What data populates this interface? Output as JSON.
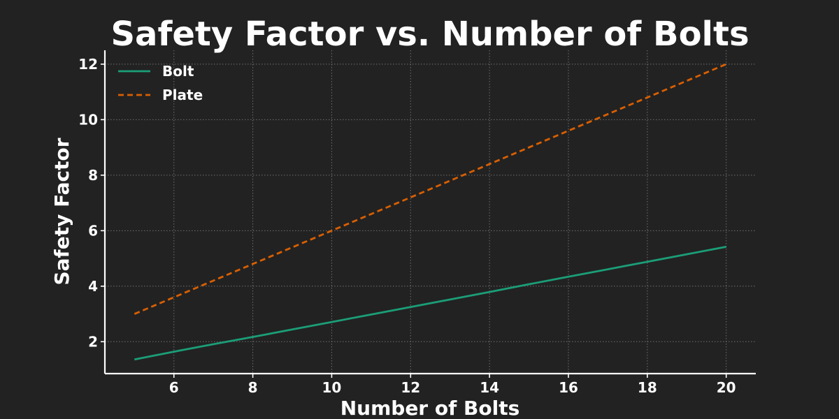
{
  "chart_data": {
    "type": "line",
    "title": "Safety Factor vs. Number of Bolts",
    "xlabel": "Number of Bolts",
    "ylabel": "Safety Factor",
    "xlim": [
      4.25,
      20.75
    ],
    "ylim": [
      0.85,
      12.5
    ],
    "xticks": [
      6,
      8,
      10,
      12,
      14,
      16,
      18,
      20
    ],
    "yticks": [
      2,
      4,
      6,
      8,
      10,
      12
    ],
    "grid": true,
    "legend_position": "top-left",
    "x": [
      5,
      6,
      7,
      8,
      9,
      10,
      11,
      12,
      13,
      14,
      15,
      16,
      17,
      18,
      19,
      20
    ],
    "series": [
      {
        "name": "Bolt",
        "color": "#1b9e77",
        "line_style": "solid",
        "values": [
          1.36,
          1.64,
          1.91,
          2.17,
          2.44,
          2.71,
          2.98,
          3.25,
          3.52,
          3.79,
          4.07,
          4.34,
          4.61,
          4.88,
          5.15,
          5.42
        ]
      },
      {
        "name": "Plate",
        "color": "#d95f02",
        "line_style": "dashed",
        "values": [
          3.0,
          3.6,
          4.2,
          4.8,
          5.4,
          6.0,
          6.6,
          7.2,
          7.8,
          8.4,
          9.0,
          9.6,
          10.2,
          10.8,
          11.4,
          12.0
        ]
      }
    ]
  }
}
